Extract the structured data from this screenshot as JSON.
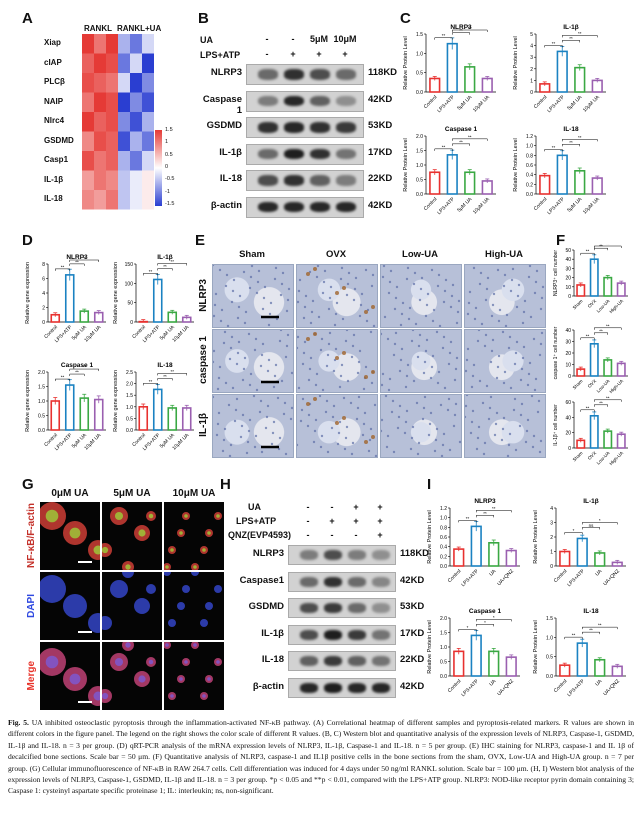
{
  "panels": {
    "A": {
      "label": "A",
      "group1": "RANKL",
      "group2": "RANKL+UA",
      "rows": [
        "Xiap",
        "cIAP",
        "PLCβ",
        "NAIP",
        "Nlrc4",
        "GSDMD",
        "Casp1",
        "IL-1β",
        "IL-18"
      ],
      "legend_ticks": [
        "1.5",
        "1",
        "0.5",
        "0",
        "-0.5",
        "-1",
        "-1.5"
      ],
      "colors": {
        "high": "#e53a36",
        "low": "#2a3ed1",
        "mid": "#ffffff"
      }
    },
    "B": {
      "label": "B",
      "ua_label": "UA",
      "ua_values": [
        "-",
        "-",
        "5μM",
        "10μM"
      ],
      "lps_label": "LPS+ATP",
      "lps_values": [
        "-",
        "+",
        "+",
        "+"
      ],
      "bands": [
        "NLRP3",
        "Caspase 1",
        "GSDMD",
        "IL-1β",
        "IL-18",
        "β-actin"
      ],
      "kd": [
        "118KD",
        "42KD",
        "53KD",
        "17KD",
        "22KD",
        "42KD"
      ]
    },
    "C": {
      "label": "C"
    },
    "D": {
      "label": "D"
    },
    "E": {
      "label": "E",
      "cols": [
        "Sham",
        "OVX",
        "Low-UA",
        "High-UA"
      ],
      "rows": [
        "NLRP3",
        "caspase 1",
        "IL-1β"
      ]
    },
    "F": {
      "label": "F"
    },
    "G": {
      "label": "G",
      "cols": [
        "0μM UA",
        "5μM UA",
        "10μM UA"
      ],
      "rows": [
        "NF-κB/F-actin",
        "DAPI",
        "Merge"
      ]
    },
    "H": {
      "label": "H",
      "ua_label": "UA",
      "ua_values": [
        "-",
        "-",
        "+",
        "+"
      ],
      "lps_label": "LPS+ATP",
      "lps_values": [
        "-",
        "+",
        "+",
        "+"
      ],
      "qnz_label": "QNZ(EVP4593)",
      "qnz_values": [
        "-",
        "-",
        "-",
        "+"
      ],
      "bands": [
        "NLRP3",
        "Caspase1",
        "GSDMD",
        "IL-1β",
        "IL-18",
        "β-actin"
      ],
      "kd": [
        "118KD",
        "42KD",
        "53KD",
        "17KD",
        "22KD",
        "42KD"
      ]
    },
    "I": {
      "label": "I"
    }
  },
  "chart_data": [
    {
      "id": "C-NLRP3",
      "type": "bar",
      "title": "NLRP3",
      "ylabel": "Relative Protein Level",
      "categories": [
        "Control",
        "LPS+ATP",
        "5μM UA",
        "10μM UA"
      ],
      "values": [
        0.35,
        1.25,
        0.65,
        0.35
      ],
      "ylim": [
        0,
        1.5
      ],
      "yticks": [
        "0.0",
        "0.5",
        "1.0",
        "1.5"
      ],
      "colors": [
        "#e8312f",
        "#1b82c2",
        "#3aa843",
        "#9a5fb0"
      ],
      "sig": [
        "**",
        "**",
        "**"
      ]
    },
    {
      "id": "C-IL1b",
      "type": "bar",
      "title": "IL-1β",
      "ylabel": "Relative Protein Level",
      "categories": [
        "Control",
        "LPS+ATP",
        "5μM UA",
        "10μM UA"
      ],
      "values": [
        0.7,
        3.5,
        2.1,
        1.0
      ],
      "ylim": [
        0,
        5
      ],
      "yticks": [
        "0",
        "1",
        "2",
        "3",
        "4",
        "5"
      ],
      "colors": [
        "#e8312f",
        "#1b82c2",
        "#3aa843",
        "#9a5fb0"
      ],
      "sig": [
        "**",
        "**",
        "**"
      ]
    },
    {
      "id": "C-Casp1",
      "type": "bar",
      "title": "Caspase 1",
      "ylabel": "Relative Protein Level",
      "categories": [
        "Control",
        "LPS+ATP",
        "5μM UA",
        "10μM UA"
      ],
      "values": [
        0.75,
        1.35,
        0.75,
        0.45
      ],
      "ylim": [
        0,
        2
      ],
      "yticks": [
        "0.0",
        "0.5",
        "1.0",
        "1.5",
        "2.0"
      ],
      "colors": [
        "#e8312f",
        "#1b82c2",
        "#3aa843",
        "#9a5fb0"
      ],
      "sig": [
        "**",
        "**",
        "**"
      ]
    },
    {
      "id": "C-IL18",
      "type": "bar",
      "title": "IL-18",
      "ylabel": "Relative Protein Level",
      "categories": [
        "Control",
        "LPS+ATP",
        "5μM UA",
        "10μM UA"
      ],
      "values": [
        0.38,
        0.8,
        0.48,
        0.33
      ],
      "ylim": [
        0,
        1.2
      ],
      "yticks": [
        "0.0",
        "0.2",
        "0.4",
        "0.6",
        "0.8",
        "1.0",
        "1.2"
      ],
      "colors": [
        "#e8312f",
        "#1b82c2",
        "#3aa843",
        "#9a5fb0"
      ],
      "sig": [
        "**",
        "**",
        "**"
      ]
    },
    {
      "id": "D-NLRP3",
      "type": "bar",
      "title": "NLRP3",
      "ylabel": "Relative gene expression",
      "categories": [
        "Control",
        "LPS+ATP",
        "5μM UA",
        "10μM UA"
      ],
      "values": [
        1,
        6.5,
        1.5,
        1.3
      ],
      "ylim": [
        0,
        8
      ],
      "yticks": [
        "0",
        "2",
        "4",
        "6",
        "8"
      ],
      "colors": [
        "#e8312f",
        "#1b82c2",
        "#3aa843",
        "#9a5fb0"
      ],
      "sig": [
        "**",
        "**",
        "**"
      ]
    },
    {
      "id": "D-IL1b",
      "type": "bar",
      "title": "IL-1β",
      "ylabel": "Relative gene expression",
      "categories": [
        "Control",
        "LPS+ATP",
        "5μM UA",
        "10μM UA"
      ],
      "values": [
        1,
        110,
        25,
        12
      ],
      "ylim": [
        0,
        150
      ],
      "yticks": [
        "0",
        "50",
        "100",
        "150"
      ],
      "colors": [
        "#e8312f",
        "#1b82c2",
        "#3aa843",
        "#9a5fb0"
      ],
      "sig": [
        "**",
        "**",
        "**"
      ]
    },
    {
      "id": "D-Casp1",
      "type": "bar",
      "title": "Caspase 1",
      "ylabel": "Relative gene expression",
      "categories": [
        "Control",
        "LPS+ATP",
        "5μM UA",
        "10μM UA"
      ],
      "values": [
        1,
        1.55,
        1.1,
        1.05
      ],
      "ylim": [
        0,
        2
      ],
      "yticks": [
        "0.0",
        "0.5",
        "1.0",
        "1.5",
        "2.0"
      ],
      "colors": [
        "#e8312f",
        "#1b82c2",
        "#3aa843",
        "#9a5fb0"
      ],
      "sig": [
        "**",
        "**",
        "**"
      ]
    },
    {
      "id": "D-IL18",
      "type": "bar",
      "title": "IL-18",
      "ylabel": "Relative gene expression",
      "categories": [
        "Control",
        "LPS+ATP",
        "5μM UA",
        "10μM UA"
      ],
      "values": [
        1,
        1.75,
        0.95,
        0.95
      ],
      "ylim": [
        0,
        2.5
      ],
      "yticks": [
        "0.0",
        "0.5",
        "1.0",
        "1.5",
        "2.0",
        "2.5"
      ],
      "colors": [
        "#e8312f",
        "#1b82c2",
        "#3aa843",
        "#9a5fb0"
      ],
      "sig": [
        "**",
        "**",
        "**"
      ]
    },
    {
      "id": "F-NLRP3",
      "type": "bar",
      "ylabel": "NLRP3⁺ cell number",
      "categories": [
        "Sham",
        "OVX",
        "Low-UA",
        "High-UA"
      ],
      "values": [
        12,
        40,
        20,
        14
      ],
      "ylim": [
        0,
        50
      ],
      "yticks": [
        "0",
        "10",
        "20",
        "30",
        "40",
        "50"
      ],
      "colors": [
        "#e8312f",
        "#1b82c2",
        "#3aa843",
        "#9a5fb0"
      ],
      "sig": [
        "**",
        "**",
        "**"
      ]
    },
    {
      "id": "F-Casp1",
      "type": "bar",
      "ylabel": "caspase 1⁺ cell number",
      "categories": [
        "Sham",
        "OVX",
        "Low-UA",
        "High-UA"
      ],
      "values": [
        6,
        28,
        14,
        11
      ],
      "ylim": [
        0,
        40
      ],
      "yticks": [
        "0",
        "10",
        "20",
        "30",
        "40"
      ],
      "colors": [
        "#e8312f",
        "#1b82c2",
        "#3aa843",
        "#9a5fb0"
      ],
      "sig": [
        "**",
        "**",
        "**"
      ]
    },
    {
      "id": "F-IL1b",
      "type": "bar",
      "ylabel": "IL-1β⁺ cell number",
      "categories": [
        "Sham",
        "OVX",
        "Low-UA",
        "High-UA"
      ],
      "values": [
        10,
        42,
        22,
        18
      ],
      "ylim": [
        0,
        60
      ],
      "yticks": [
        "0",
        "20",
        "40",
        "60"
      ],
      "colors": [
        "#e8312f",
        "#1b82c2",
        "#3aa843",
        "#9a5fb0"
      ],
      "sig": [
        "**",
        "**",
        "**"
      ]
    },
    {
      "id": "I-NLRP3",
      "type": "bar",
      "title": "NLRP3",
      "ylabel": "Relative Protein Level",
      "categories": [
        "Control",
        "LPS+ATP",
        "UA",
        "UA+QNZ"
      ],
      "values": [
        0.35,
        0.82,
        0.48,
        0.32
      ],
      "ylim": [
        0,
        1.2
      ],
      "yticks": [
        "0.0",
        "0.2",
        "0.4",
        "0.6",
        "0.8",
        "1.0",
        "1.2"
      ],
      "colors": [
        "#e8312f",
        "#1b82c2",
        "#3aa843",
        "#9a5fb0"
      ],
      "sig": [
        "**",
        "**",
        "**"
      ]
    },
    {
      "id": "I-IL1b",
      "type": "bar",
      "title": "IL-1β",
      "ylabel": "Relative Protein Level",
      "categories": [
        "Control",
        "LPS+ATP",
        "UA",
        "UA+QNZ"
      ],
      "values": [
        1.0,
        1.9,
        0.9,
        0.25
      ],
      "ylim": [
        0,
        4
      ],
      "yticks": [
        "0",
        "1",
        "2",
        "3",
        "4"
      ],
      "colors": [
        "#e8312f",
        "#1b82c2",
        "#3aa843",
        "#9a5fb0"
      ],
      "sig": [
        "*",
        "ns",
        "*"
      ]
    },
    {
      "id": "I-Casp1",
      "type": "bar",
      "title": "Caspase 1",
      "ylabel": "Relative Protein Level",
      "categories": [
        "Control",
        "LPS+ATP",
        "UA",
        "UA+QNZ"
      ],
      "values": [
        0.85,
        1.4,
        0.85,
        0.65
      ],
      "ylim": [
        0,
        2
      ],
      "yticks": [
        "0.0",
        "0.5",
        "1.0",
        "1.5",
        "2.0"
      ],
      "colors": [
        "#e8312f",
        "#1b82c2",
        "#3aa843",
        "#9a5fb0"
      ],
      "sig": [
        "*",
        "*",
        "*"
      ]
    },
    {
      "id": "I-IL18",
      "type": "bar",
      "title": "IL-18",
      "ylabel": "Relative Protein Level",
      "categories": [
        "Control",
        "LPS+ATP",
        "UA",
        "UA+QNZ"
      ],
      "values": [
        0.28,
        0.85,
        0.42,
        0.25
      ],
      "ylim": [
        0,
        1.5
      ],
      "yticks": [
        "0.0",
        "0.5",
        "1.0",
        "1.5"
      ],
      "colors": [
        "#e8312f",
        "#1b82c2",
        "#3aa843",
        "#9a5fb0"
      ],
      "sig": [
        "**",
        "**",
        "**"
      ]
    }
  ],
  "caption": {
    "fig": "Fig. 5.",
    "text": "UA inhibited osteoclastic pyroptosis through the inflammation-activated NF-κB pathway. (A) Correlational heatmap of different samples and pyroptosis-related markers. R values are shown in different colors in the figure panel. The legend on the right shows the color scale of different R values. (B, C) Western blot and quantitative analysis of the expression levels of NLRP3, Caspase-1, GSDMD, IL-1β and IL-18. n = 3 per group. (D) qRT-PCR analysis of the mRNA expression levels of NLRP3, IL-1β, Caspase-1 and IL-18. n = 5 per group. (E) IHC staining for NLRP3, caspase-1 and IL 1β of decalcified bone sections. Scale bar = 50 μm. (F) Quantitative analysis of NLRP3, caspase-1 and IL1β positive cells in the bone sections from the sham, OVX, Low-UA and High-UA group. n = 7 per group. (G) Cellular immunofluorescence of NF-κB in RAW 264.7 cells. Cell differentiation was induced for 4 days under 50 ng/ml RANKL solution. Scale bar = 100 μm. (H, I) Western blot analysis of the expression levels of NLRP3, Caspase-1, GSDMD, IL-1β and IL-18. n = 3 per group. *p < 0.05 and **p < 0.01, compared with the LPS+ATP group. NLRP3: NOD-like receptor pyrin domain containing 3; Caspase 1: cysteinyl aspartate specific proteinase 1; IL: interleukin; ns, non-significant."
  }
}
